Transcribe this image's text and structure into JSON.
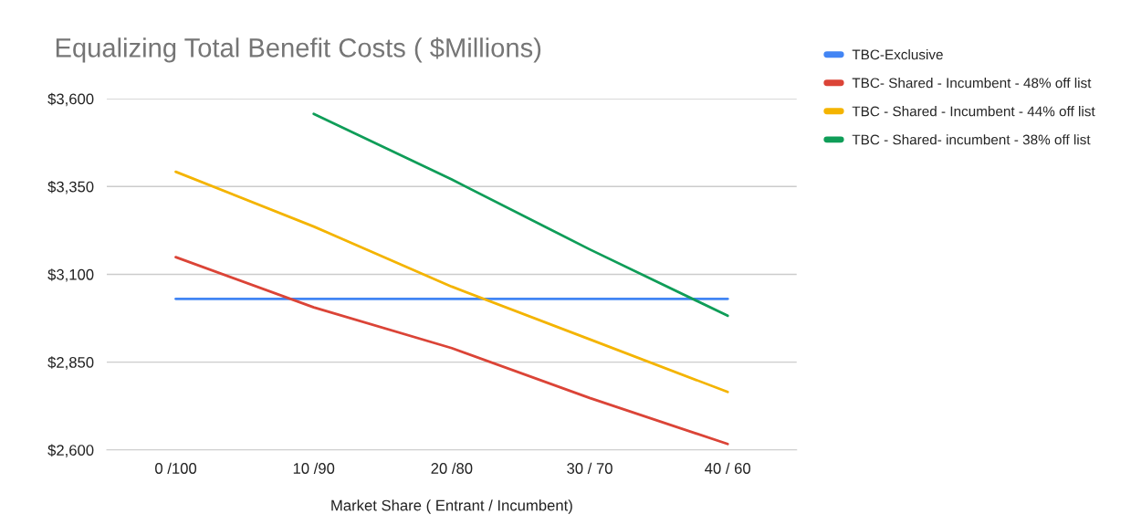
{
  "chart_data": {
    "type": "line",
    "title": "Equalizing Total Benefit Costs ( $Millions)",
    "xlabel": "Market Share ( Entrant / Incumbent)",
    "categories": [
      "0 /100",
      "10 /90",
      "20 /80",
      "30 / 70",
      "40 / 60"
    ],
    "series": [
      {
        "name": "TBC-Exclusive",
        "color": "#4285f4",
        "values": [
          3030,
          3030,
          3030,
          3030,
          3030
        ]
      },
      {
        "name": "TBC- Shared - Incumbent - 48% off list",
        "color": "#db4437",
        "values": [
          3149,
          3006,
          2890,
          2748,
          2617
        ]
      },
      {
        "name": "TBC - Shared - Incumbent - 44% off list",
        "color": "#f4b400",
        "values": [
          3392,
          3236,
          3065,
          2915,
          2765
        ]
      },
      {
        "name": "TBC - Shared- incumbent - 38% off list",
        "color": "#0f9d58",
        "values": [
          null,
          3557,
          3370,
          3171,
          2982
        ]
      }
    ],
    "ylim": [
      2600,
      3600
    ],
    "yticks": [
      {
        "value": 2600,
        "label": "$2,600"
      },
      {
        "value": 2850,
        "label": "$2,850"
      },
      {
        "value": 3100,
        "label": "$3,100"
      },
      {
        "value": 3350,
        "label": "$3,350"
      },
      {
        "value": 3600,
        "label": "$3,600"
      }
    ],
    "grid": "y",
    "legend": "right",
    "marker": "none",
    "line_style": "solid"
  }
}
